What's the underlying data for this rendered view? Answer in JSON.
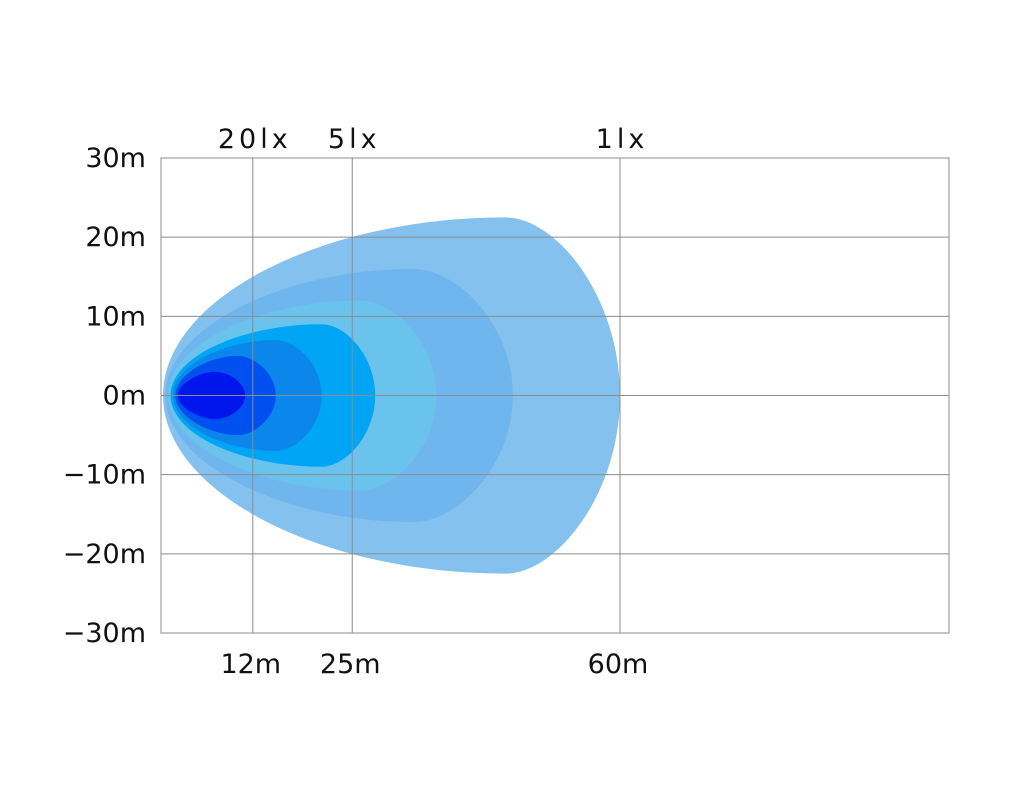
{
  "chart_data": {
    "type": "area",
    "title": "",
    "xlabel": "",
    "ylabel": "",
    "xlim": [
      0,
      100
    ],
    "ylim": [
      -30,
      30
    ],
    "grid": true,
    "y_ticks": [
      {
        "value": 30,
        "label": "30m"
      },
      {
        "value": 20,
        "label": "20m"
      },
      {
        "value": 10,
        "label": "10m"
      },
      {
        "value": 0,
        "label": "0m"
      },
      {
        "value": -10,
        "label": "−10m"
      },
      {
        "value": -20,
        "label": "−20m"
      },
      {
        "value": -30,
        "label": "−30m"
      }
    ],
    "x_ticks": [
      {
        "value": 12,
        "label": "12m",
        "lux_label": "20lx"
      },
      {
        "value": 25,
        "label": "25m",
        "lux_label": "5lx"
      },
      {
        "value": 60,
        "label": "60m",
        "lux_label": "1lx"
      }
    ],
    "contours": [
      {
        "reach": 60,
        "width": 22.5,
        "peak_at": 45,
        "color": "#85c1ef"
      },
      {
        "reach": 46,
        "width": 16,
        "peak_at": 33,
        "color": "#70b6ee"
      },
      {
        "reach": 36,
        "width": 12,
        "peak_at": 26,
        "color": "#6ac3ec"
      },
      {
        "reach": 28,
        "width": 9,
        "peak_at": 21,
        "color": "#00a6f5"
      },
      {
        "reach": 21,
        "width": 7,
        "peak_at": 15,
        "color": "#0b86ea"
      },
      {
        "reach": 15,
        "width": 5,
        "peak_at": 10,
        "color": "#0050f0"
      },
      {
        "reach": 11,
        "width": 3,
        "peak_at": 7,
        "color": "#0016ec"
      }
    ]
  }
}
